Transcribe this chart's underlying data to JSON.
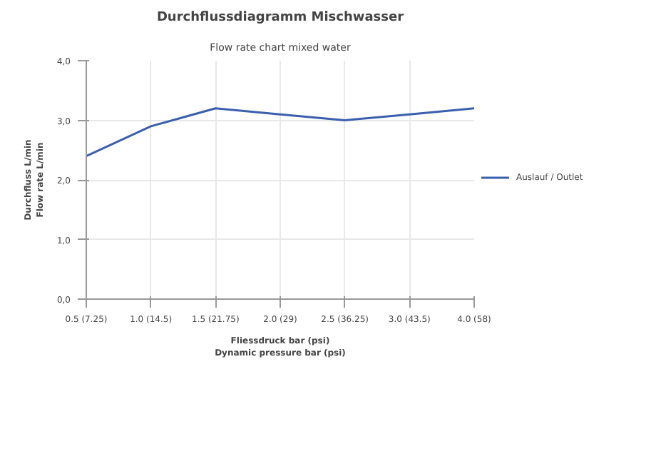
{
  "chart_data": {
    "type": "line",
    "title": "Durchflussdiagramm Mischwasser",
    "subtitle": "Flow rate chart mixed water",
    "xlabel": "Fliessdruck bar (psi)\nDynamic pressure bar (psi)",
    "ylabel": "Durchfluss L/min\nFlow rate L/min",
    "categories": [
      "0.5 (7.25)",
      "1.0 (14.5)",
      "1.5 (21.75)",
      "2.0 (29)",
      "2.5 (36.25)",
      "3.0 (43.5)",
      "4.0 (58)"
    ],
    "series": [
      {
        "name": "Auslauf / Outlet",
        "color": "#3a5fad",
        "values": [
          2.4,
          2.9,
          3.2,
          3.1,
          3.0,
          3.1,
          3.2
        ]
      }
    ],
    "ylim": [
      0,
      4
    ],
    "yticks": [
      {
        "value": 0,
        "label": "0,0"
      },
      {
        "value": 1,
        "label": "1,0"
      },
      {
        "value": 2,
        "label": "2,0"
      },
      {
        "value": 3,
        "label": "3,0"
      },
      {
        "value": 4,
        "label": "4,0"
      }
    ],
    "grid": true,
    "legend": "right",
    "line_style": "solid"
  }
}
